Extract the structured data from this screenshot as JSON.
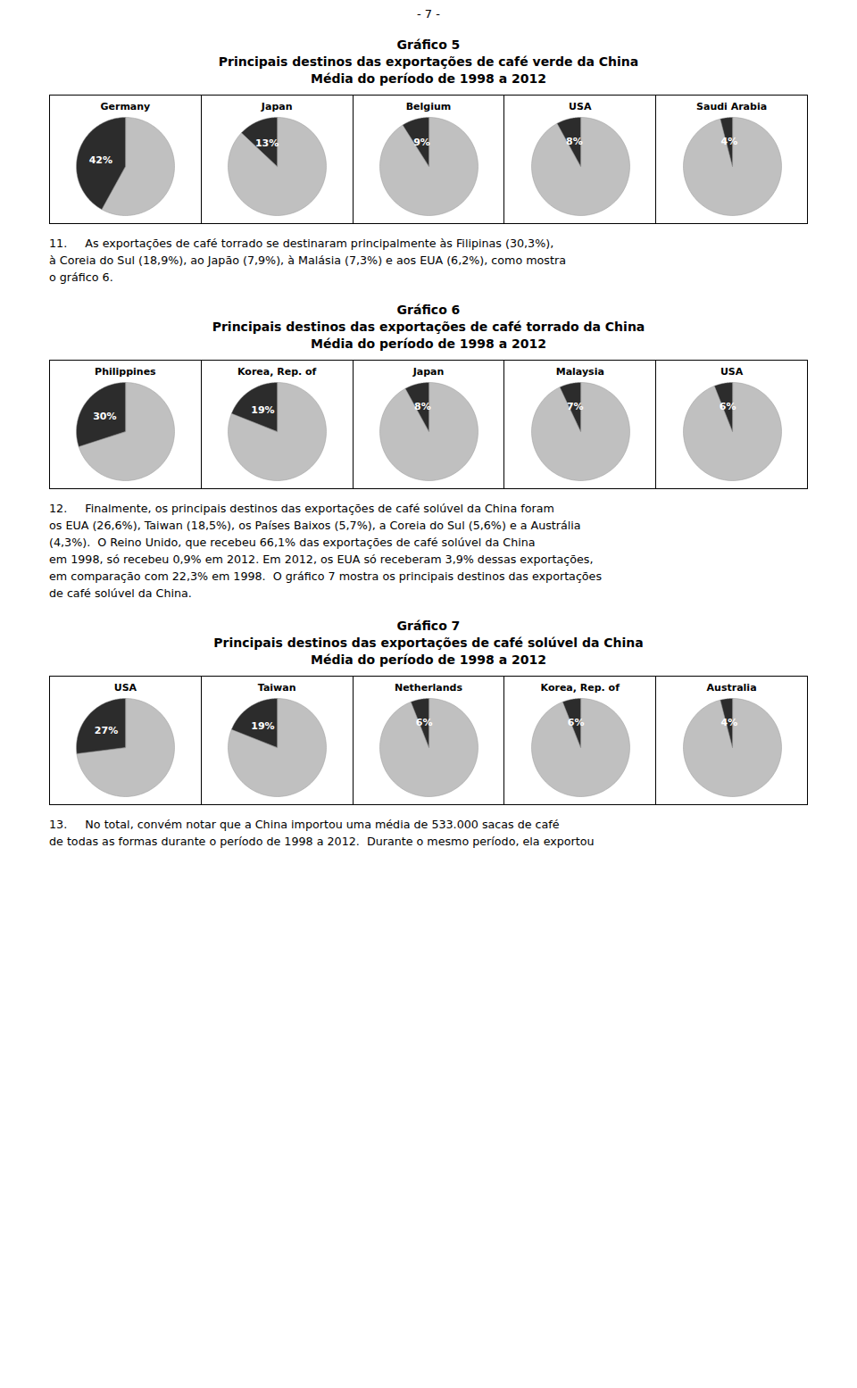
{
  "annotations": [
    "- 7 -"
  ],
  "chart_data": [
    {
      "type": "pie",
      "title": "Gráfico 5",
      "subtitle": [
        "Principais destinos das exportações de café verde da China",
        "Média do período de 1998 a 2012"
      ],
      "colors": [
        "#c0c0c0",
        "#2c2c2c"
      ],
      "data_labels": true,
      "series": [
        {
          "name": "Germany",
          "values": [
            58,
            42
          ],
          "value_labels": [
            null,
            "42%"
          ]
        },
        {
          "name": "Japan",
          "values": [
            87,
            13
          ],
          "value_labels": [
            null,
            "13%"
          ]
        },
        {
          "name": "Belgium",
          "values": [
            91,
            9
          ],
          "value_labels": [
            null,
            "9%"
          ]
        },
        {
          "name": "USA",
          "values": [
            92,
            8
          ],
          "value_labels": [
            null,
            "8%"
          ]
        },
        {
          "name": "Saudi Arabia",
          "values": [
            96,
            4
          ],
          "value_labels": [
            null,
            "4%"
          ]
        }
      ],
      "annotations": [
        "11.     As exportações de café torrado se destinaram principalmente às Filipinas (30,3%),",
        "à Coreia do Sul (18,9%), ao Japão (7,9%), à Malásia (7,3%) e aos EUA (6,2%), como mostra",
        "o gráfico 6."
      ]
    },
    {
      "type": "pie",
      "title": "Gráfico 6",
      "subtitle": [
        "Principais destinos das exportações de café torrado da China",
        "Média do período de 1998 a 2012"
      ],
      "colors": [
        "#c0c0c0",
        "#2c2c2c"
      ],
      "data_labels": true,
      "series": [
        {
          "name": "Philippines",
          "values": [
            70,
            30
          ],
          "value_labels": [
            null,
            "30%"
          ]
        },
        {
          "name": "Korea, Rep. of",
          "values": [
            81,
            19
          ],
          "value_labels": [
            null,
            "19%"
          ]
        },
        {
          "name": "Japan",
          "values": [
            92,
            8
          ],
          "value_labels": [
            null,
            "8%"
          ]
        },
        {
          "name": "Malaysia",
          "values": [
            93,
            7
          ],
          "value_labels": [
            null,
            "7%"
          ]
        },
        {
          "name": "USA",
          "values": [
            94,
            6
          ],
          "value_labels": [
            null,
            "6%"
          ]
        }
      ],
      "annotations": [
        "12.     Finalmente, os principais destinos das exportações de café solúvel da China foram",
        "os EUA (26,6%), Taiwan (18,5%), os Países Baixos (5,7%), a Coreia do Sul (5,6%) e a Austrália",
        "(4,3%).  O Reino Unido, que recebeu 66,1% das exportações de café solúvel da China",
        "em 1998, só recebeu 0,9% em 2012. Em 2012, os EUA só receberam 3,9% dessas exportações,",
        "em comparação com 22,3% em 1998.  O gráfico 7 mostra os principais destinos das exportações",
        "de café solúvel da China."
      ]
    },
    {
      "type": "pie",
      "title": "Gráfico 7",
      "subtitle": [
        "Principais destinos das exportações de café solúvel da China",
        "Média do período de 1998 a 2012"
      ],
      "colors": [
        "#c0c0c0",
        "#2c2c2c"
      ],
      "data_labels": true,
      "series": [
        {
          "name": "USA",
          "values": [
            73,
            27
          ],
          "value_labels": [
            null,
            "27%"
          ]
        },
        {
          "name": "Taiwan",
          "values": [
            81,
            19
          ],
          "value_labels": [
            null,
            "19%"
          ]
        },
        {
          "name": "Netherlands",
          "values": [
            94,
            6
          ],
          "value_labels": [
            null,
            "6%"
          ]
        },
        {
          "name": "Korea, Rep. of",
          "values": [
            94,
            6
          ],
          "value_labels": [
            null,
            "6%"
          ]
        },
        {
          "name": "Australia",
          "values": [
            96,
            4
          ],
          "value_labels": [
            null,
            "4%"
          ]
        }
      ],
      "annotations": [
        "13.     No total, convém notar que a China importou uma média de 533.000 sacas de café",
        "de todas as formas durante o período de 1998 a 2012.  Durante o mesmo período, ela exportou"
      ]
    }
  ]
}
